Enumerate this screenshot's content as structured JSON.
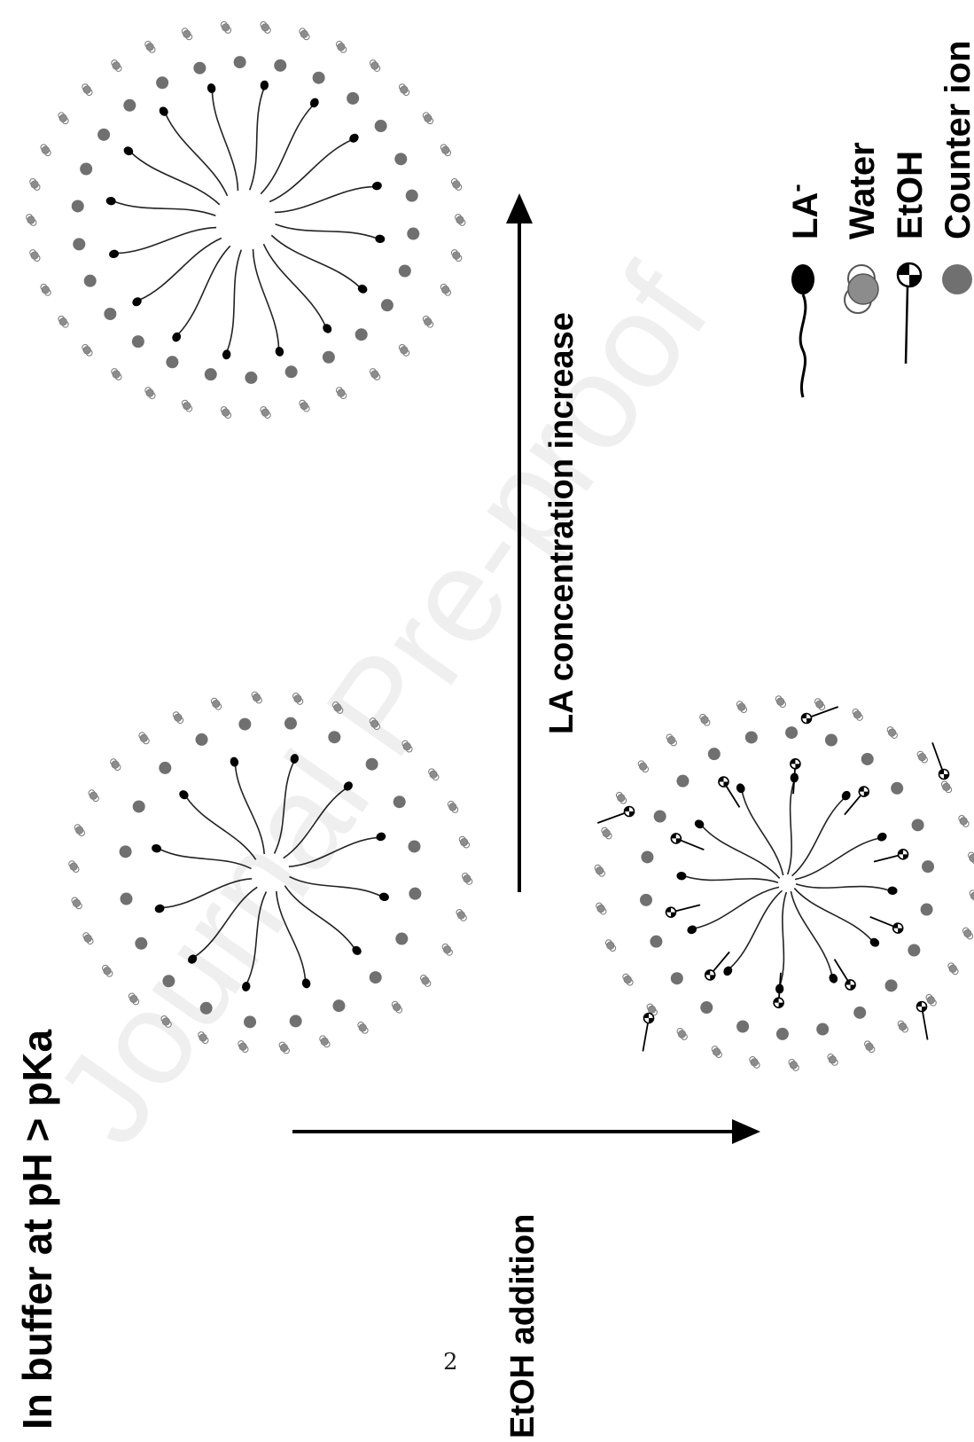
{
  "watermark": "Journal Pre-proof",
  "page_number": "2",
  "labels": {
    "buffer": "In buffer at pH > pKa",
    "etoh_addition": "EtOH addition",
    "concentration": "LA concentration increase"
  },
  "legend": {
    "la": "LA",
    "la_superscript": "-",
    "water": "Water",
    "etoh": "EtOH",
    "counter_ion": "Counter ion"
  },
  "colors": {
    "headgroup": "#000000",
    "counter_ion": "#707070",
    "water": "#8c8c8c"
  }
}
